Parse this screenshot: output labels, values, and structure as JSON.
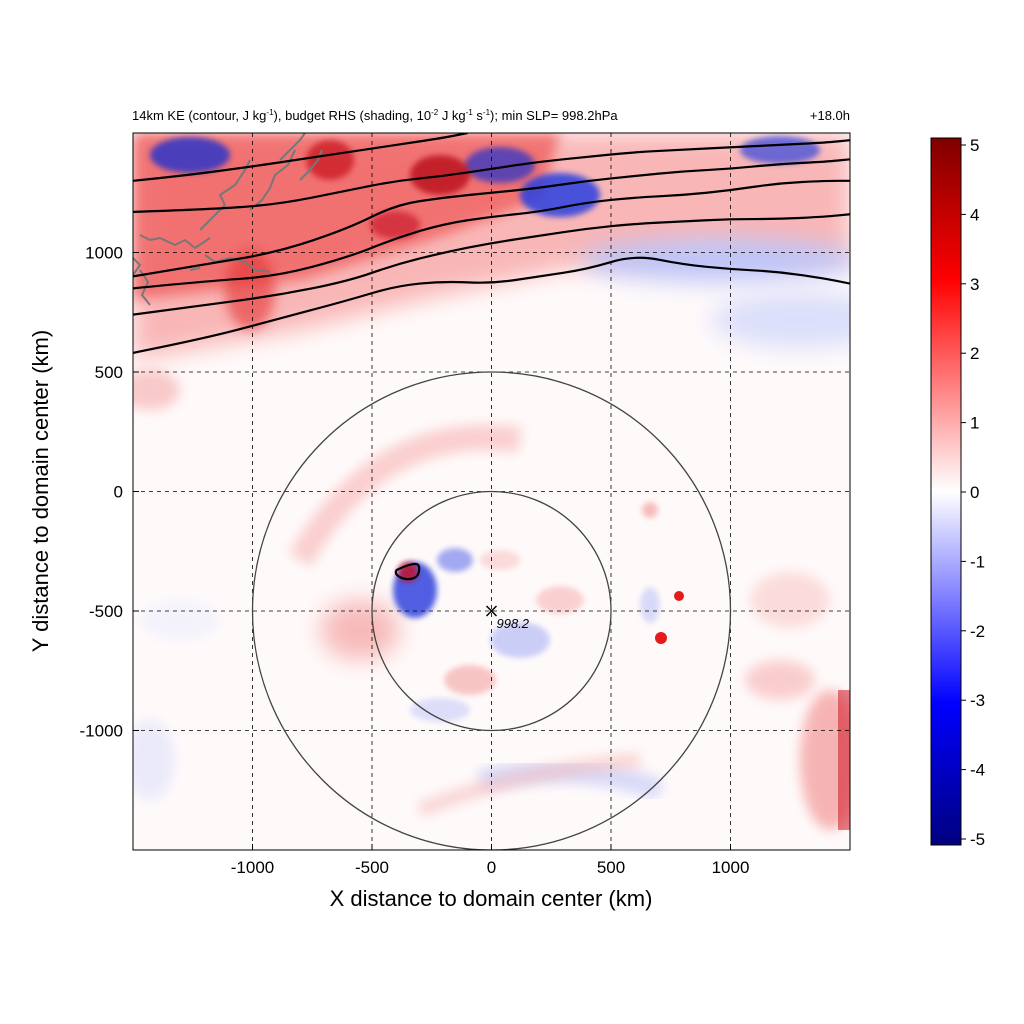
{
  "figure": {
    "title_parts": {
      "p1": "14km KE (contour, J kg",
      "s1": "-1",
      "p2": "), budget RHS (shading, 10",
      "s2": "-2",
      "p3": " J kg",
      "s3": "-1",
      "p4": " s",
      "s4": "-1",
      "p5": "); min SLP= 998.2hPa"
    },
    "time_label": "+18.0h",
    "min_slp_label": "998.2"
  },
  "chart_data": {
    "type": "heatmap",
    "xlabel": "X distance to domain center (km)",
    "ylabel": "Y distance to domain center (km)",
    "xlim": [
      -1500,
      1500
    ],
    "ylim": [
      -1500,
      1500
    ],
    "x_ticks": [
      -1000,
      -500,
      0,
      500,
      1000
    ],
    "y_ticks": [
      -1000,
      -500,
      0,
      500,
      1000
    ],
    "grid": "dashed at ticks",
    "storm_center": {
      "x": 0,
      "y": -500,
      "label": "998.2"
    },
    "range_rings_km": [
      500,
      1000
    ],
    "colorbar": {
      "min": -5,
      "max": 5,
      "ticks": [
        5,
        4,
        3,
        2,
        1,
        0,
        -1,
        -2,
        -3,
        -4,
        -5
      ],
      "colors": [
        "#00008b",
        "#0000ff",
        "#ffffff",
        "#ff0000",
        "#8b0000"
      ]
    },
    "ke_contours": [
      [
        [
          -1500,
          580
        ],
        [
          -1200,
          640
        ],
        [
          -900,
          720
        ],
        [
          -600,
          800
        ],
        [
          -400,
          860
        ],
        [
          -200,
          880
        ],
        [
          0,
          870
        ],
        [
          200,
          900
        ],
        [
          400,
          930
        ],
        [
          600,
          990
        ],
        [
          800,
          950
        ],
        [
          1000,
          930
        ],
        [
          1200,
          920
        ],
        [
          1400,
          890
        ],
        [
          1500,
          870
        ]
      ],
      [
        [
          -1500,
          740
        ],
        [
          -1200,
          780
        ],
        [
          -900,
          820
        ],
        [
          -600,
          880
        ],
        [
          -400,
          950
        ],
        [
          -200,
          1000
        ],
        [
          0,
          1040
        ],
        [
          200,
          1070
        ],
        [
          400,
          1100
        ],
        [
          600,
          1120
        ],
        [
          800,
          1130
        ],
        [
          1000,
          1140
        ],
        [
          1200,
          1140
        ],
        [
          1400,
          1150
        ],
        [
          1500,
          1160
        ]
      ],
      [
        [
          -1500,
          850
        ],
        [
          -1200,
          880
        ],
        [
          -900,
          900
        ],
        [
          -600,
          980
        ],
        [
          -400,
          1060
        ],
        [
          -200,
          1120
        ],
        [
          0,
          1150
        ],
        [
          200,
          1170
        ],
        [
          400,
          1210
        ],
        [
          600,
          1230
        ],
        [
          800,
          1240
        ],
        [
          1000,
          1260
        ],
        [
          1200,
          1290
        ],
        [
          1400,
          1300
        ],
        [
          1500,
          1300
        ]
      ],
      [
        [
          -1500,
          900
        ],
        [
          -1200,
          950
        ],
        [
          -900,
          1000
        ],
        [
          -600,
          1100
        ],
        [
          -400,
          1200
        ],
        [
          -200,
          1230
        ],
        [
          0,
          1250
        ],
        [
          200,
          1270
        ],
        [
          400,
          1300
        ],
        [
          600,
          1320
        ],
        [
          800,
          1340
        ],
        [
          1000,
          1350
        ],
        [
          1200,
          1370
        ],
        [
          1400,
          1380
        ],
        [
          1500,
          1390
        ]
      ],
      [
        [
          -1500,
          1170
        ],
        [
          -1200,
          1180
        ],
        [
          -900,
          1200
        ],
        [
          -600,
          1260
        ],
        [
          -400,
          1300
        ],
        [
          -200,
          1320
        ],
        [
          0,
          1350
        ],
        [
          200,
          1380
        ],
        [
          400,
          1400
        ],
        [
          600,
          1420
        ],
        [
          800,
          1430
        ],
        [
          1000,
          1440
        ],
        [
          1200,
          1450
        ],
        [
          1400,
          1460
        ],
        [
          1500,
          1470
        ]
      ],
      [
        [
          -1500,
          1300
        ],
        [
          -1300,
          1320
        ],
        [
          -1000,
          1360
        ],
        [
          -800,
          1390
        ],
        [
          -600,
          1420
        ],
        [
          -400,
          1450
        ],
        [
          -200,
          1480
        ],
        [
          -100,
          1500
        ]
      ]
    ],
    "small_ke_contour": [
      [
        -400,
        -330
      ],
      [
        -360,
        -310
      ],
      [
        -310,
        -300
      ],
      [
        -300,
        -320
      ],
      [
        -310,
        -360
      ],
      [
        -360,
        -370
      ],
      [
        -400,
        -350
      ],
      [
        -400,
        -330
      ]
    ]
  }
}
